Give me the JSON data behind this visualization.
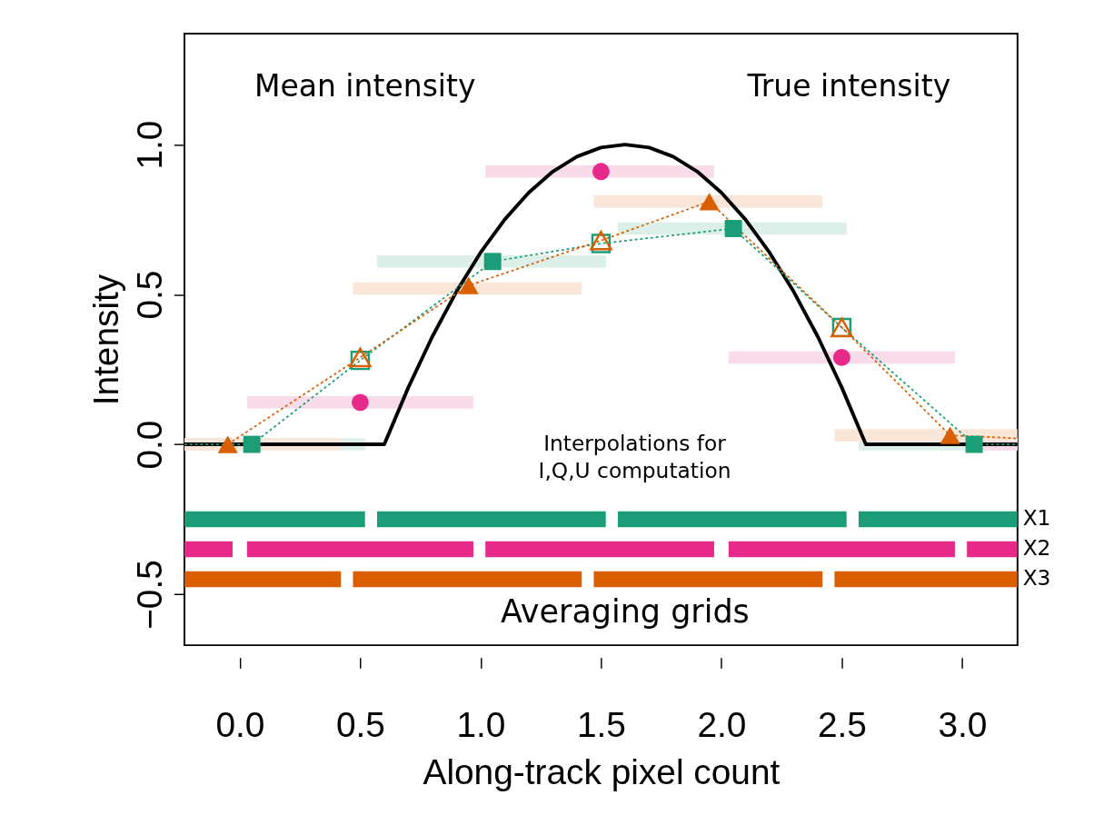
{
  "chart_data": {
    "type": "line",
    "xlabel": "Along-track pixel count",
    "ylabel": "Intensity",
    "xlim": [
      -0.23,
      3.23
    ],
    "ylim": [
      -0.67,
      1.37
    ],
    "xticks": [
      {
        "value": 0,
        "label": "0.0"
      },
      0.5,
      {
        "value": 1,
        "label": "1.0"
      },
      1.5,
      {
        "value": 2,
        "label": "2.0"
      },
      2.5,
      {
        "value": 3,
        "label": "3.0"
      }
    ],
    "yticks": [
      -0.5,
      {
        "value": 0,
        "label": "0.0"
      },
      0.5,
      {
        "value": 1,
        "label": "1.0"
      }
    ],
    "grid": false,
    "legend": false,
    "annotations": [
      "Mean intensity",
      "True intensity",
      "Interpolations for\nI,Q,U computation",
      "Averaging grids"
    ],
    "series": [
      {
        "color": "#dcefe9",
        "x": [
          -0.23,
          0.52,
          0.545,
          0.57,
          1.52,
          1.545,
          1.57,
          2.52,
          2.545,
          2.57,
          3.23
        ],
        "values": [
          0,
          0,
          null,
          0.61,
          0.61,
          null,
          0.72,
          0.72,
          null,
          0,
          0
        ]
      },
      {
        "color": "#f9dcea",
        "x": [
          -0.23,
          -0.03,
          0,
          0.03,
          0.97,
          1.0,
          1.02,
          1.97,
          2.0,
          2.03,
          2.97,
          3.0,
          3.02,
          3.23
        ],
        "values": [
          0,
          0,
          null,
          0.14,
          0.14,
          null,
          0.91,
          0.91,
          null,
          0.29,
          0.29,
          null,
          0,
          0
        ]
      },
      {
        "color": "#f9e6d8",
        "x": [
          -0.23,
          0.42,
          0.445,
          0.47,
          1.42,
          1.445,
          1.47,
          2.42,
          2.445,
          2.47,
          3.23
        ],
        "values": [
          0,
          0,
          null,
          0.52,
          0.52,
          null,
          0.81,
          0.81,
          null,
          0.03,
          0.03
        ]
      },
      {
        "name": "X1",
        "color": "#1b9e77",
        "x": [
          -0.23,
          0.52,
          0.545,
          0.57,
          1.52,
          1.545,
          1.57,
          2.52,
          2.545,
          2.57,
          3.23
        ],
        "values": [
          -0.25,
          -0.25,
          null,
          -0.25,
          -0.25,
          null,
          -0.25,
          -0.25,
          null,
          -0.25,
          -0.25
        ]
      },
      {
        "name": "X2",
        "color": "#e7298a",
        "x": [
          -0.23,
          -0.03,
          0,
          0.03,
          0.97,
          1.0,
          1.02,
          1.97,
          2.0,
          2.03,
          2.97,
          3.0,
          3.02,
          3.23
        ],
        "values": [
          -0.35,
          -0.35,
          null,
          -0.35,
          -0.35,
          null,
          -0.35,
          -0.35,
          null,
          -0.35,
          -0.35,
          null,
          -0.35,
          -0.35
        ]
      },
      {
        "name": "X3",
        "color": "#d95f02",
        "x": [
          -0.23,
          0.42,
          0.445,
          0.47,
          1.42,
          1.445,
          1.47,
          2.42,
          2.445,
          2.47,
          3.23
        ],
        "values": [
          -0.45,
          -0.45,
          null,
          -0.45,
          -0.45,
          null,
          -0.45,
          -0.45,
          null,
          -0.45,
          -0.45
        ]
      },
      {
        "color": "#000000",
        "x": [
          -0.23,
          0.6,
          0.7,
          0.8,
          0.9,
          1.0,
          1.1,
          1.2,
          1.3,
          1.4,
          1.5,
          1.6,
          1.7,
          1.8,
          1.9,
          2.0,
          2.1,
          2.2,
          2.3,
          2.4,
          2.5,
          2.6,
          3.23
        ],
        "values": [
          0,
          0,
          0.19,
          0.36,
          0.51,
          0.64,
          0.75,
          0.84,
          0.91,
          0.96,
          0.99,
          1.0,
          0.99,
          0.96,
          0.91,
          0.84,
          0.75,
          0.64,
          0.51,
          0.36,
          0.19,
          0,
          0
        ]
      },
      {
        "line_style": "dotted",
        "color": "#1b9e77",
        "x": [
          -0.23,
          0.05,
          0.5,
          1.05,
          1.5,
          2.05,
          2.5,
          3.05,
          3.23
        ],
        "values": [
          0,
          0,
          0.28,
          0.61,
          0.67,
          0.72,
          0.39,
          0,
          0
        ]
      },
      {
        "line_style": "dotted",
        "color": "#d95f02",
        "x": [
          -0.05,
          0.5,
          0.95,
          1.5,
          1.95,
          2.5,
          2.95,
          3.23
        ],
        "values": [
          0,
          0.29,
          0.53,
          0.68,
          0.81,
          0.39,
          0.03,
          0.02
        ]
      },
      {
        "type": "scatter",
        "marker": "square",
        "color": "#1b9e77",
        "x": [
          0.05,
          1.05,
          2.05,
          3.05
        ],
        "values": [
          0,
          0.61,
          0.72,
          0
        ]
      },
      {
        "type": "scatter",
        "marker": "circle",
        "color": "#e7298a",
        "x": [
          0.5,
          1.5,
          2.5
        ],
        "values": [
          0.14,
          0.91,
          0.29
        ]
      },
      {
        "type": "scatter",
        "marker": "triangle",
        "color": "#d95f02",
        "x": [
          -0.05,
          0.95,
          1.95,
          2.95
        ],
        "values": [
          0,
          0.53,
          0.81,
          0.03
        ]
      },
      {
        "type": "scatter",
        "marker": "square",
        "color": "#1b9e77",
        "x": [
          0.5,
          1.5,
          2.5
        ],
        "values": [
          0.28,
          0.67,
          0.39
        ]
      },
      {
        "type": "scatter",
        "marker": "triangle",
        "color": "#d95f02",
        "x": [
          0.5,
          1.5,
          2.5
        ],
        "values": [
          0.29,
          0.68,
          0.39
        ]
      }
    ]
  }
}
